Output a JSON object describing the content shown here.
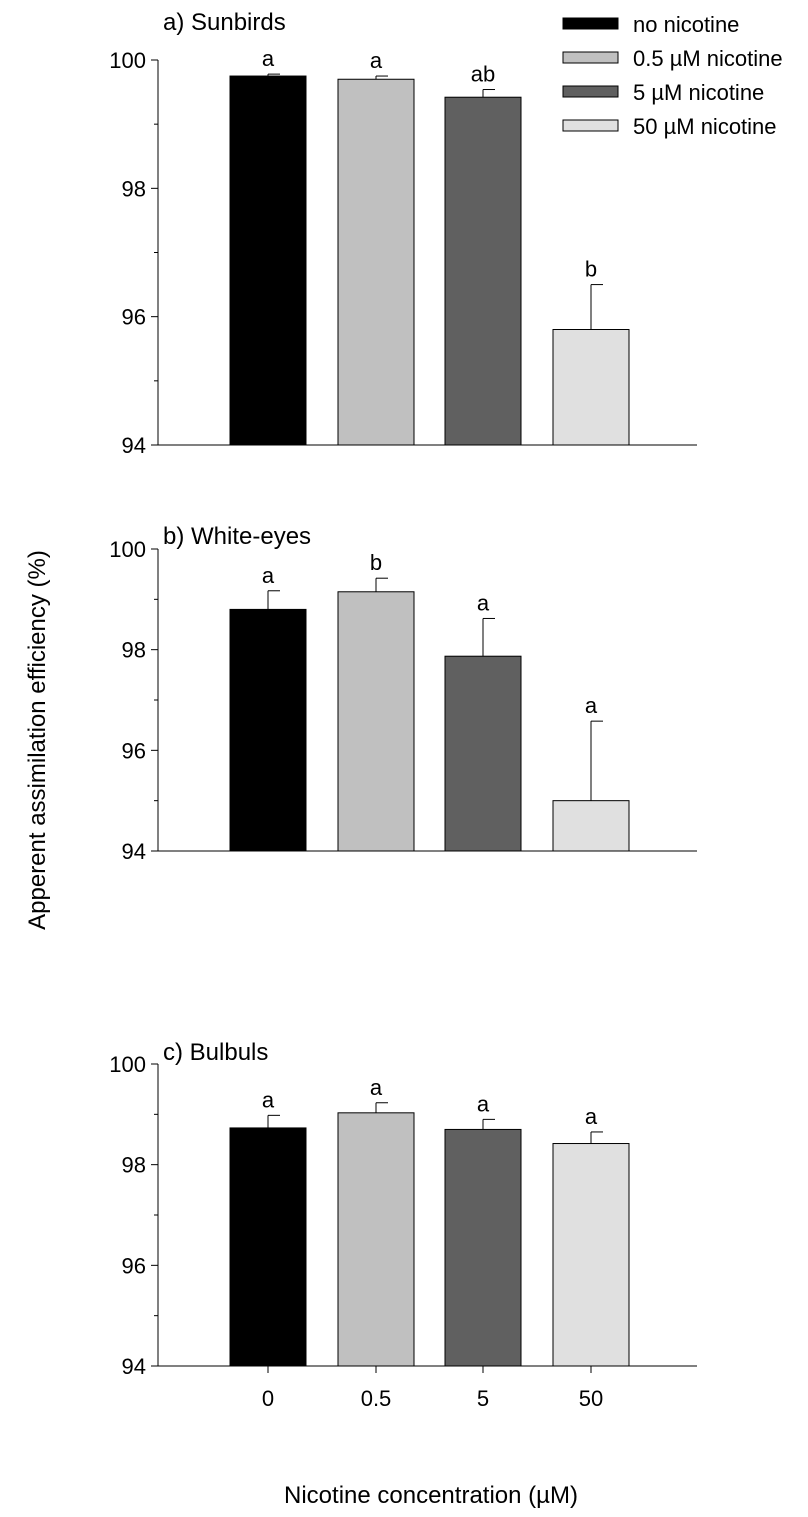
{
  "figure": {
    "ylabel": "Apperent assimilation efficiency (%)",
    "xlabel": "Nicotine concentration (µM)"
  },
  "legend": [
    {
      "label": "no nicotine",
      "color": "#000000"
    },
    {
      "label": "0.5 µM nicotine",
      "color": "#c0c0c0"
    },
    {
      "label": "5 µM nicotine",
      "color": "#606060"
    },
    {
      "label": "50 µM nicotine",
      "color": "#e0e0e0"
    }
  ],
  "chart_data": [
    {
      "type": "bar",
      "title": "a) Sunbirds",
      "categories": [
        "0",
        "0.5",
        "5",
        "50"
      ],
      "values": [
        99.75,
        99.7,
        99.42,
        95.8
      ],
      "errors": [
        0.03,
        0.05,
        0.12,
        0.7
      ],
      "labels": [
        "a",
        "a",
        "ab",
        "b"
      ],
      "ylim": [
        94,
        100
      ],
      "yticks": [
        "94",
        "96",
        "98",
        "100"
      ]
    },
    {
      "type": "bar",
      "title": "b) White-eyes",
      "categories": [
        "0",
        "0.5",
        "5",
        "50"
      ],
      "values": [
        98.8,
        99.15,
        97.87,
        95.0
      ],
      "errors": [
        0.37,
        0.27,
        0.75,
        1.58
      ],
      "labels": [
        "a",
        "b",
        "a",
        "a"
      ],
      "ylim": [
        94,
        100
      ],
      "yticks": [
        "94",
        "96",
        "98",
        "100"
      ]
    },
    {
      "type": "bar",
      "title": "c) Bulbuls",
      "categories": [
        "0",
        "0.5",
        "5",
        "50"
      ],
      "values": [
        98.73,
        99.03,
        98.7,
        98.42
      ],
      "errors": [
        0.25,
        0.2,
        0.2,
        0.23
      ],
      "labels": [
        "a",
        "a",
        "a",
        "a"
      ],
      "ylim": [
        94,
        100
      ],
      "yticks": [
        "94",
        "96",
        "98",
        "100"
      ]
    }
  ]
}
